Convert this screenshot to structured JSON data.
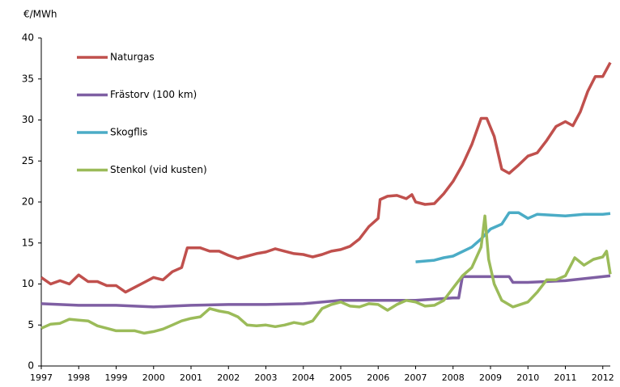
{
  "chart_data": {
    "type": "line",
    "y_label": "€/MWh",
    "xlim": [
      1997,
      2012.2
    ],
    "xticks": [
      1997,
      1998,
      1999,
      2000,
      2001,
      2002,
      2003,
      2004,
      2005,
      2006,
      2007,
      2008,
      2009,
      2010,
      2011,
      2012
    ],
    "ylim": [
      0,
      40
    ],
    "yticks": [
      0,
      5,
      10,
      15,
      20,
      25,
      30,
      35,
      40
    ],
    "grid": false,
    "legend": "top-left",
    "series": [
      {
        "name": "Naturgas",
        "color": "#c0504d",
        "x": [
          1997,
          1997.25,
          1997.5,
          1997.75,
          1998.0,
          1998.25,
          1998.5,
          1998.75,
          1999.0,
          1999.25,
          1999.5,
          1999.75,
          2000.0,
          2000.25,
          2000.5,
          2000.75,
          2000.9,
          2001.25,
          2001.5,
          2001.75,
          2002.0,
          2002.25,
          2002.5,
          2002.75,
          2003.0,
          2003.25,
          2003.5,
          2003.75,
          2004.0,
          2004.25,
          2004.5,
          2004.75,
          2005.0,
          2005.25,
          2005.5,
          2005.75,
          2006.0,
          2006.05,
          2006.25,
          2006.5,
          2006.75,
          2006.9,
          2007.0,
          2007.25,
          2007.5,
          2007.75,
          2008.0,
          2008.25,
          2008.5,
          2008.75,
          2008.9,
          2009.1,
          2009.3,
          2009.5,
          2009.75,
          2010.0,
          2010.25,
          2010.5,
          2010.75,
          2011.0,
          2011.2,
          2011.4,
          2011.6,
          2011.8,
          2012.0,
          2012.2
        ],
        "values": [
          10.8,
          10.0,
          10.4,
          10.0,
          11.1,
          10.3,
          10.3,
          9.8,
          9.8,
          9.0,
          9.6,
          10.2,
          10.8,
          10.5,
          11.5,
          12.0,
          14.4,
          14.4,
          14.0,
          14.0,
          13.5,
          13.1,
          13.4,
          13.7,
          13.9,
          14.3,
          14.0,
          13.7,
          13.6,
          13.3,
          13.6,
          14.0,
          14.2,
          14.6,
          15.5,
          17.0,
          18.0,
          20.3,
          20.7,
          20.8,
          20.4,
          20.9,
          20.0,
          19.7,
          19.8,
          21.0,
          22.5,
          24.5,
          27.0,
          30.2,
          30.2,
          28.0,
          24.0,
          23.5,
          24.5,
          25.6,
          26.0,
          27.5,
          29.2,
          29.8,
          29.3,
          31.0,
          33.5,
          35.3,
          35.3,
          37.0
        ]
      },
      {
        "name": "Frästorv (100 km)",
        "color": "#7f5fa3",
        "x": [
          1997,
          1998,
          1999,
          2000,
          2001,
          2002,
          2003,
          2004,
          2005,
          2006,
          2007,
          2008,
          2008.15,
          2008.25,
          2009.0,
          2009.5,
          2009.6,
          2010.0,
          2011.0,
          2012.0,
          2012.2
        ],
        "values": [
          7.6,
          7.4,
          7.4,
          7.2,
          7.4,
          7.5,
          7.5,
          7.6,
          8.0,
          8.0,
          8.0,
          8.3,
          8.3,
          10.9,
          10.9,
          10.9,
          10.2,
          10.2,
          10.4,
          10.9,
          11.0
        ]
      },
      {
        "name": "Skogflis",
        "color": "#4bacc6",
        "x": [
          2007.0,
          2007.5,
          2007.75,
          2008.0,
          2008.5,
          2008.75,
          2009.0,
          2009.3,
          2009.5,
          2009.75,
          2010.0,
          2010.25,
          2011.0,
          2011.5,
          2012.0,
          2012.2
        ],
        "values": [
          12.7,
          12.9,
          13.2,
          13.4,
          14.5,
          15.5,
          16.7,
          17.3,
          18.7,
          18.7,
          18.0,
          18.5,
          18.3,
          18.5,
          18.5,
          18.6
        ]
      },
      {
        "name": "Stenkol (vid kusten)",
        "color": "#9bbb59",
        "x": [
          1997,
          1997.25,
          1997.5,
          1997.75,
          1998.0,
          1998.25,
          1998.5,
          1998.75,
          1999.0,
          1999.5,
          1999.75,
          2000.0,
          2000.25,
          2000.5,
          2000.75,
          2001.0,
          2001.25,
          2001.5,
          2001.75,
          2002.0,
          2002.25,
          2002.5,
          2002.75,
          2003.0,
          2003.25,
          2003.5,
          2003.75,
          2004.0,
          2004.25,
          2004.5,
          2004.75,
          2005.0,
          2005.25,
          2005.5,
          2005.75,
          2006.0,
          2006.25,
          2006.5,
          2006.75,
          2007.0,
          2007.25,
          2007.5,
          2007.75,
          2008.0,
          2008.25,
          2008.5,
          2008.75,
          2008.85,
          2008.95,
          2009.1,
          2009.3,
          2009.6,
          2010.0,
          2010.25,
          2010.5,
          2010.75,
          2011.0,
          2011.25,
          2011.5,
          2011.75,
          2012.0,
          2012.1,
          2012.2
        ],
        "values": [
          4.6,
          5.1,
          5.2,
          5.7,
          5.6,
          5.5,
          4.9,
          4.6,
          4.3,
          4.3,
          4.0,
          4.2,
          4.5,
          5.0,
          5.5,
          5.8,
          6.0,
          7.0,
          6.7,
          6.5,
          6.0,
          5.0,
          4.9,
          5.0,
          4.8,
          5.0,
          5.3,
          5.1,
          5.5,
          7.0,
          7.5,
          7.8,
          7.3,
          7.2,
          7.6,
          7.5,
          6.8,
          7.5,
          8.0,
          7.8,
          7.3,
          7.4,
          8.0,
          9.5,
          11.0,
          12.0,
          14.5,
          18.3,
          13.0,
          10.0,
          8.0,
          7.2,
          7.8,
          9.0,
          10.5,
          10.5,
          11.0,
          13.2,
          12.3,
          13.0,
          13.3,
          14.0,
          11.2
        ]
      }
    ]
  }
}
